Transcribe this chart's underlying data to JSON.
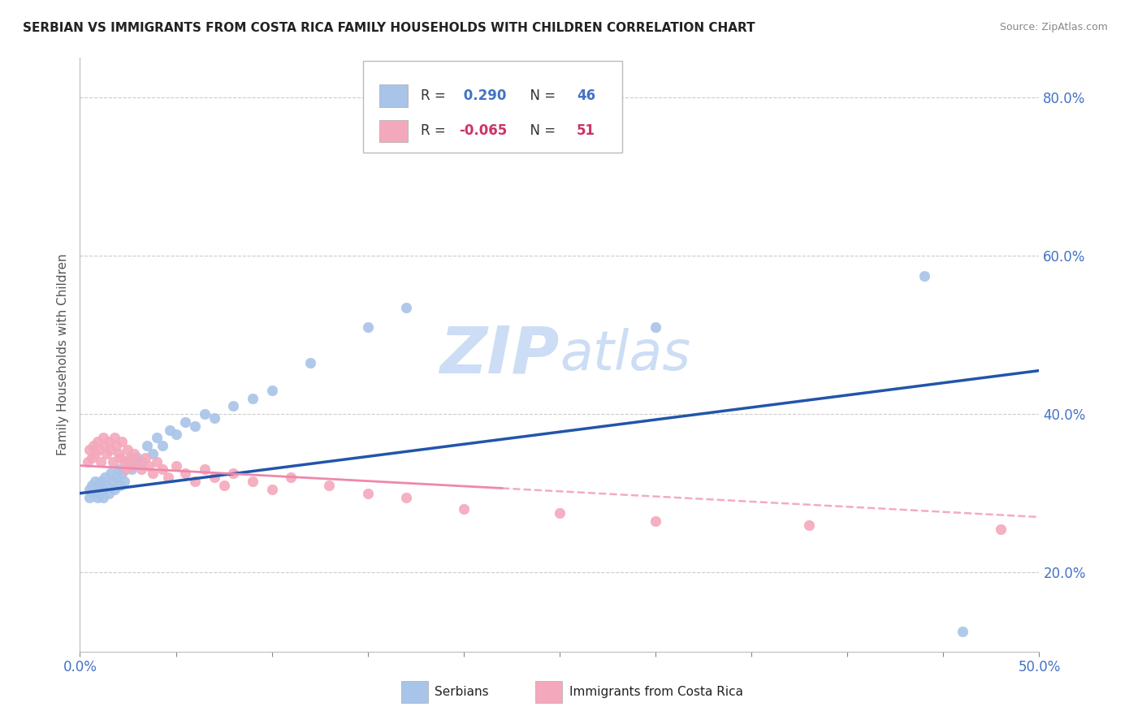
{
  "title": "SERBIAN VS IMMIGRANTS FROM COSTA RICA FAMILY HOUSEHOLDS WITH CHILDREN CORRELATION CHART",
  "source": "Source: ZipAtlas.com",
  "ylabel": "Family Households with Children",
  "ytick_labels": [
    "20.0%",
    "40.0%",
    "60.0%",
    "80.0%"
  ],
  "ytick_values": [
    0.2,
    0.4,
    0.6,
    0.8
  ],
  "xlim": [
    0.0,
    0.5
  ],
  "ylim": [
    0.1,
    0.85
  ],
  "color_serbian": "#a8c4e8",
  "color_costa_rica": "#f4a8bc",
  "line_color_serbian": "#2255aa",
  "line_color_costa_rica": "#ee88aa",
  "watermark_color": "#ccddf5",
  "serbian_R": 0.29,
  "costa_rica_R": -0.065,
  "serbian_N": 46,
  "costa_rica_N": 51,
  "serbian_scatter_x": [
    0.005,
    0.005,
    0.006,
    0.007,
    0.008,
    0.009,
    0.009,
    0.01,
    0.01,
    0.011,
    0.012,
    0.012,
    0.013,
    0.014,
    0.015,
    0.016,
    0.017,
    0.018,
    0.019,
    0.02,
    0.021,
    0.022,
    0.023,
    0.025,
    0.027,
    0.03,
    0.032,
    0.035,
    0.038,
    0.04,
    0.043,
    0.047,
    0.05,
    0.055,
    0.06,
    0.065,
    0.07,
    0.08,
    0.09,
    0.1,
    0.12,
    0.15,
    0.17,
    0.3,
    0.44,
    0.46
  ],
  "serbian_scatter_y": [
    0.305,
    0.295,
    0.31,
    0.3,
    0.315,
    0.295,
    0.305,
    0.3,
    0.31,
    0.315,
    0.305,
    0.295,
    0.32,
    0.31,
    0.3,
    0.325,
    0.315,
    0.305,
    0.32,
    0.33,
    0.31,
    0.325,
    0.315,
    0.34,
    0.33,
    0.345,
    0.34,
    0.36,
    0.35,
    0.37,
    0.36,
    0.38,
    0.375,
    0.39,
    0.385,
    0.4,
    0.395,
    0.41,
    0.42,
    0.43,
    0.465,
    0.51,
    0.535,
    0.51,
    0.575,
    0.125
  ],
  "costa_rica_scatter_x": [
    0.004,
    0.005,
    0.006,
    0.007,
    0.008,
    0.009,
    0.01,
    0.011,
    0.012,
    0.013,
    0.014,
    0.015,
    0.016,
    0.017,
    0.018,
    0.019,
    0.02,
    0.021,
    0.022,
    0.023,
    0.024,
    0.025,
    0.026,
    0.027,
    0.028,
    0.03,
    0.032,
    0.034,
    0.036,
    0.038,
    0.04,
    0.043,
    0.046,
    0.05,
    0.055,
    0.06,
    0.065,
    0.07,
    0.075,
    0.08,
    0.09,
    0.1,
    0.11,
    0.13,
    0.15,
    0.17,
    0.2,
    0.25,
    0.3,
    0.38,
    0.48
  ],
  "costa_rica_scatter_y": [
    0.34,
    0.355,
    0.345,
    0.36,
    0.35,
    0.365,
    0.355,
    0.34,
    0.37,
    0.36,
    0.35,
    0.365,
    0.355,
    0.34,
    0.37,
    0.36,
    0.35,
    0.345,
    0.365,
    0.34,
    0.33,
    0.355,
    0.345,
    0.335,
    0.35,
    0.34,
    0.33,
    0.345,
    0.335,
    0.325,
    0.34,
    0.33,
    0.32,
    0.335,
    0.325,
    0.315,
    0.33,
    0.32,
    0.31,
    0.325,
    0.315,
    0.305,
    0.32,
    0.31,
    0.3,
    0.295,
    0.28,
    0.275,
    0.265,
    0.26,
    0.255
  ],
  "serbian_line_x0": 0.0,
  "serbian_line_y0": 0.3,
  "serbian_line_x1": 0.5,
  "serbian_line_y1": 0.455,
  "cr_line_x0": 0.0,
  "cr_line_y0": 0.335,
  "cr_line_x1": 0.5,
  "cr_line_y1": 0.27
}
